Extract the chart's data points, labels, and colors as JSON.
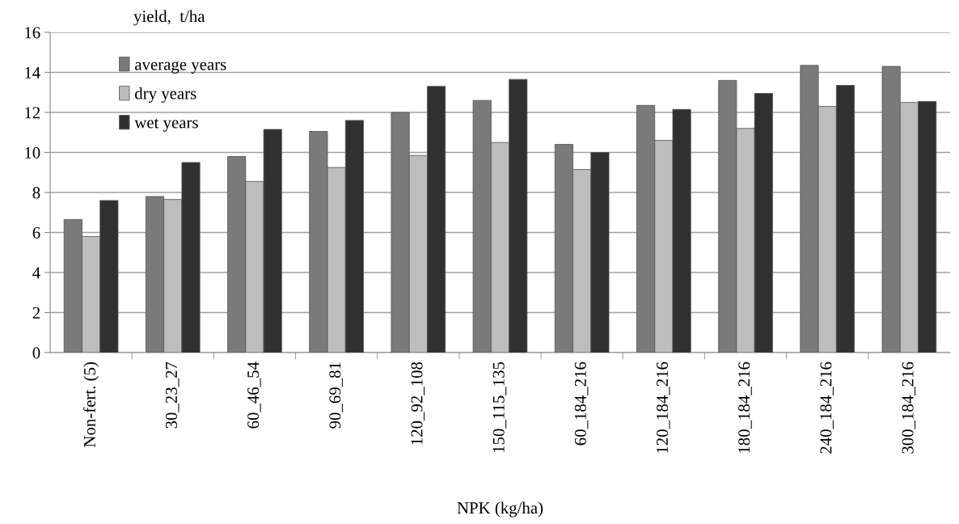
{
  "chart_data": {
    "type": "bar",
    "ylabel": "yield,  t/ha",
    "xlabel": "NPK (kg/ha)",
    "categories": [
      "Non-fert. (5)",
      "30_23_27",
      "60_46_54",
      "90_69_81",
      "120_92_108",
      "150_115_135",
      "60_184_216",
      "120_184_216",
      "180_184_216",
      "240_184_216",
      "300_184_216"
    ],
    "series": [
      {
        "name": "average years",
        "color": "#7a7a7a",
        "values": [
          6.65,
          7.8,
          9.8,
          11.05,
          12.0,
          12.6,
          10.4,
          12.35,
          13.6,
          14.35,
          14.3
        ]
      },
      {
        "name": "dry years",
        "color": "#bdbdbd",
        "values": [
          5.8,
          7.65,
          8.55,
          9.25,
          9.85,
          10.5,
          9.15,
          10.6,
          11.2,
          12.3,
          12.5
        ]
      },
      {
        "name": "wet years",
        "color": "#303030",
        "values": [
          7.6,
          9.5,
          11.15,
          11.6,
          13.3,
          13.65,
          10.0,
          12.15,
          12.95,
          13.35,
          12.55
        ]
      }
    ],
    "ylim": [
      0,
      16
    ],
    "yticks": [
      0,
      2,
      4,
      6,
      8,
      10,
      12,
      14,
      16
    ],
    "grid": "y",
    "legend": "top left"
  }
}
